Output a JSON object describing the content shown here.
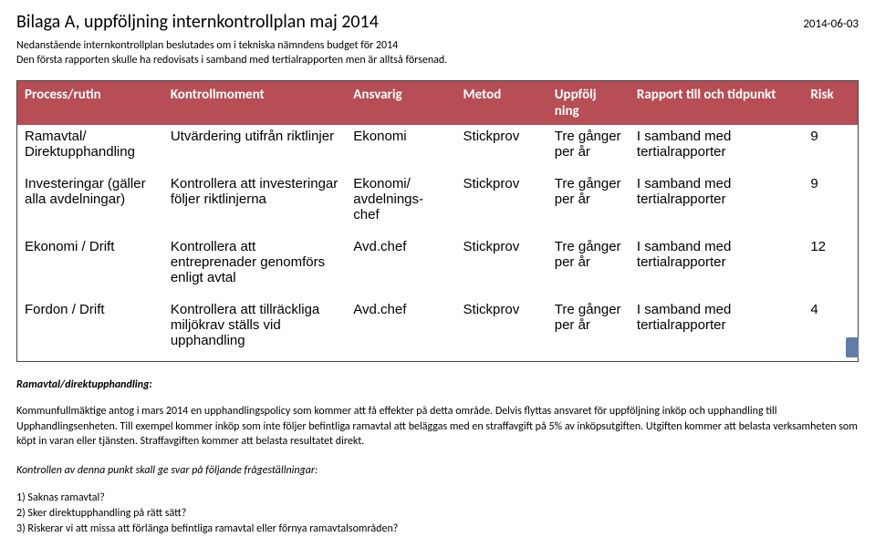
{
  "header": {
    "title": "Bilaga A, uppföljning internkontrollplan maj 2014",
    "date": "2014-06-03"
  },
  "intro": {
    "line1": "Nedanstående internkontrollplan beslutades om i  tekniska nämndens budget för 2014",
    "line2": "Den första rapporten skulle ha redovisats i samband med tertialrapporten men är alltså försenad."
  },
  "table": {
    "headers": [
      "Process/rutin",
      "Kontrollmoment",
      "Ansvarig",
      "Metod",
      "Uppfölj ning",
      "Rapport till och tidpunkt",
      "Risk"
    ],
    "rows": [
      [
        "Ramavtal/ Direktupphandling",
        "Utvärdering utifrån riktlinjer",
        "Ekonomi",
        "Stickprov",
        "Tre gånger per år",
        "I samband med tertialrapporter",
        "9"
      ],
      [
        "Investeringar (gäller alla avdelningar)",
        "Kontrollera att investeringar följer riktlinjerna",
        "Ekonomi/ avdelnings-chef",
        "Stickprov",
        "Tre gånger per år",
        "I samband med tertialrapporter",
        "9"
      ],
      [
        "Ekonomi / Drift",
        "Kontrollera att entreprenader genomförs enligt avtal",
        "Avd.chef",
        "Stickprov",
        "Tre gånger per år",
        "I samband med tertialrapporter",
        "12"
      ],
      [
        "Fordon / Drift",
        "Kontrollera att tillräckliga miljökrav ställs vid upphandling",
        "Avd.chef",
        "Stickprov",
        "Tre gånger per år",
        "I samband med tertialrapporter",
        "4"
      ]
    ]
  },
  "section": {
    "title": "Ramavtal/direktupphandling:",
    "body": "Kommunfullmäktige antog i mars 2014 en upphandlingspolicy som kommer att få effekter på detta område. Delvis flyttas ansvaret för uppföljning inköp och upphandling till Upphandlingsenheten. Till exempel kommer inköp som inte följer befintliga ramavtal att beläggas med en straffavgift på 5% av inköpsutgiften. Utgiften kommer att belasta verksamheten som köpt in varan eller tjänsten. Straffavgiften kommer att belasta resultatet direkt.",
    "questions_intro": "Kontrollen av denna punkt skall ge svar på följande frågeställningar:",
    "questions": [
      "1) Saknas ramavtal?",
      "2) Sker direktupphandling på rätt sätt?",
      "3) Riskerar vi att missa att förlänga befintliga ramavtal eller förnya ramavtalsområden?"
    ]
  }
}
